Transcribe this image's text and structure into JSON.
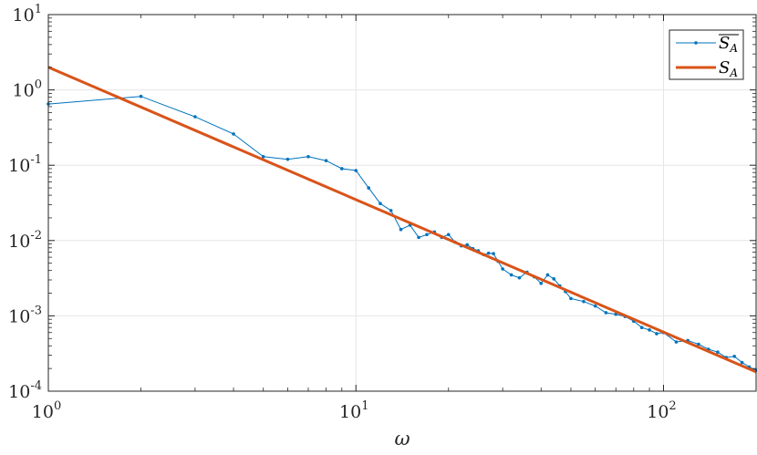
{
  "chart_data": {
    "type": "line",
    "xscale": "log",
    "yscale": "log",
    "xlim": [
      1,
      200
    ],
    "ylim": [
      0.0001,
      10
    ],
    "xlabel": "ω",
    "ylabel": "",
    "x_ticks": [
      {
        "base": "10",
        "exp": "0"
      },
      {
        "base": "10",
        "exp": "1"
      },
      {
        "base": "10",
        "exp": "2"
      }
    ],
    "y_ticks": [
      {
        "base": "10",
        "exp": "-4"
      },
      {
        "base": "10",
        "exp": "-3"
      },
      {
        "base": "10",
        "exp": "-2"
      },
      {
        "base": "10",
        "exp": "-1"
      },
      {
        "base": "10",
        "exp": "0"
      },
      {
        "base": "10",
        "exp": "1"
      }
    ],
    "grid": true,
    "legend_position": "top-right",
    "series": [
      {
        "name": "S_A (averaged)",
        "legend_main": "S",
        "legend_sub": "A",
        "legend_overline": true,
        "color": "#0072BD",
        "style": "line-with-dot-markers",
        "x": [
          1,
          2,
          3,
          4,
          5,
          6,
          7,
          8,
          9,
          10,
          11,
          12,
          13,
          14,
          15,
          16,
          17,
          18,
          19,
          20,
          21,
          22,
          23,
          24,
          25,
          26,
          27,
          28,
          29,
          30,
          32,
          34,
          36,
          38,
          40,
          42,
          44,
          46,
          48,
          50,
          55,
          60,
          65,
          70,
          75,
          80,
          85,
          90,
          95,
          100,
          110,
          120,
          130,
          140,
          150,
          160,
          170,
          180,
          190,
          200
        ],
        "y": [
          0.65,
          0.82,
          0.44,
          0.26,
          0.13,
          0.12,
          0.13,
          0.115,
          0.09,
          0.085,
          0.05,
          0.031,
          0.025,
          0.014,
          0.016,
          0.011,
          0.012,
          0.013,
          0.011,
          0.012,
          0.0095,
          0.0085,
          0.0088,
          0.0078,
          0.0073,
          0.0065,
          0.0068,
          0.0067,
          0.0053,
          0.0042,
          0.0035,
          0.0032,
          0.0038,
          0.0033,
          0.0027,
          0.0035,
          0.0031,
          0.0025,
          0.0021,
          0.0017,
          0.00155,
          0.00135,
          0.0011,
          0.00105,
          0.00098,
          0.00085,
          0.0007,
          0.00065,
          0.00058,
          0.0006,
          0.00045,
          0.00047,
          0.00042,
          0.00036,
          0.00033,
          0.00028,
          0.00029,
          0.00024,
          0.00021,
          0.00019
        ]
      },
      {
        "name": "S_A",
        "legend_main": "S",
        "legend_sub": "A",
        "legend_overline": false,
        "color": "#D95319",
        "style": "line",
        "x": [
          1,
          200
        ],
        "y": [
          2.0,
          0.00018
        ]
      }
    ]
  }
}
